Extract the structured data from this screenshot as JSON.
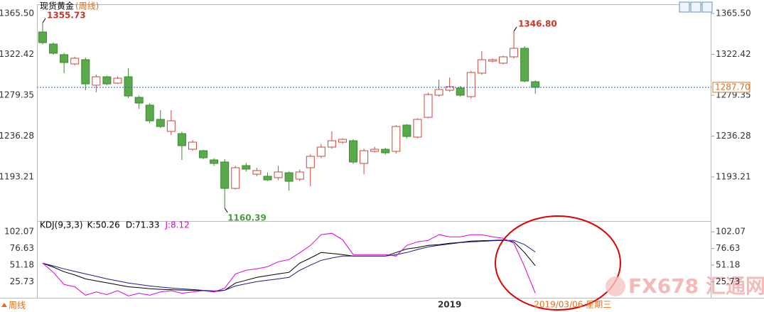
{
  "header": {
    "title": "现货黄金",
    "title_suffix": "(周线)",
    "period_button": "周线",
    "watermark": "FX678 汇通网"
  },
  "chart_data": [
    {
      "type": "candlestick",
      "categories": [
        null,
        null,
        null,
        null,
        null,
        null,
        null,
        null,
        null,
        null,
        null,
        null,
        null,
        null,
        null,
        null,
        null,
        null,
        null,
        null,
        null,
        null,
        null,
        null,
        null,
        null,
        null,
        null,
        null,
        null,
        null,
        null,
        null,
        null,
        null,
        null,
        null,
        null,
        "2019",
        null,
        null,
        null,
        null,
        null,
        null,
        null,
        null
      ],
      "open": [
        1346.0,
        1333.3,
        1322.1,
        1312.3,
        1316.8,
        1289.9,
        1298.8,
        1292.1,
        1298.8,
        1277.1,
        1268.9,
        1253.9,
        1241.2,
        1238.9,
        1222.4,
        1220.9,
        1211.2,
        1209.0,
        1181.2,
        1205.2,
        1196.2,
        1194.0,
        1192.5,
        1197.7,
        1191.0,
        1203.0,
        1215.0,
        1224.7,
        1229.9,
        1231.4,
        1207.5,
        1220.2,
        1222.4,
        1220.2,
        1247.9,
        1235.2,
        1256.1,
        1279.4,
        1284.6,
        1286.9,
        1277.9,
        1302.6,
        1315.3,
        1313.1,
        1319.8,
        1328.8,
        1293.6
      ],
      "high": [
        1355.73,
        1335,
        1324,
        1320,
        1319,
        1301,
        1300,
        1299,
        1307.8,
        1279,
        1271,
        1263.6,
        1263.6,
        1241,
        1232,
        1222,
        1213,
        1212,
        1205,
        1208,
        1203,
        1198,
        1205,
        1199,
        1201,
        1217,
        1228,
        1241.2,
        1234,
        1233,
        1223,
        1225,
        1224,
        1248,
        1249,
        1255,
        1282,
        1295.8,
        1298,
        1289,
        1305,
        1325.8,
        1318,
        1321,
        1346.8,
        1331,
        1295
      ],
      "low": [
        1333.0,
        1322,
        1302.6,
        1311,
        1284.6,
        1282.4,
        1290,
        1291,
        1276.4,
        1265,
        1250,
        1244.9,
        1237.4,
        1211.2,
        1221,
        1212,
        1205,
        1160.39,
        1180,
        1199,
        1194,
        1189,
        1190,
        1179.0,
        1189,
        1183.5,
        1213,
        1223,
        1228,
        1207,
        1196.2,
        1219,
        1217,
        1218,
        1234,
        1234,
        1255,
        1278,
        1283,
        1278,
        1276,
        1301,
        1314,
        1312,
        1318,
        1293,
        1281
      ],
      "close": [
        1334.8,
        1323.6,
        1313.8,
        1318.3,
        1291.3,
        1298.8,
        1291.3,
        1297.3,
        1278.6,
        1271.1,
        1252.4,
        1246.4,
        1252.4,
        1226.2,
        1229.9,
        1213.5,
        1207.5,
        1181.2,
        1203.0,
        1201.5,
        1200.0,
        1190.2,
        1198.5,
        1188.7,
        1198.5,
        1215.0,
        1224.7,
        1231.4,
        1232.9,
        1209.0,
        1220.9,
        1222.4,
        1218.7,
        1246.4,
        1235.9,
        1253.9,
        1280.1,
        1285.4,
        1288.4,
        1279.4,
        1303.3,
        1316.8,
        1316.8,
        1319.8,
        1328.8,
        1294.3,
        1287.7
      ],
      "up_color": "#d0463a",
      "down_color": "#5aaa4c",
      "ylim": [
        1151.3,
        1372.2
      ],
      "yticks": [
        {
          "value": 1365.5,
          "label": "1365.50"
        },
        1322.42,
        1279.35,
        1236.28,
        1193.21
      ],
      "last_price_label": "1287.70",
      "cursor_label": "2019/03/06 星期三",
      "annotations": [
        {
          "label": "1355.73",
          "value": 1355.73,
          "color": "#c0392b"
        },
        {
          "label": "1346.80",
          "value": 1346.8,
          "color": "#c0392b"
        },
        {
          "label": "1160.39",
          "value": 1160.39,
          "color": "#4a9a3c"
        }
      ]
    },
    {
      "type": "line",
      "title": "KDJ(9,3,3)",
      "ylim": [
        0,
        111
      ],
      "yticks": [
        102.07,
        76.63,
        51.18,
        25.73
      ],
      "series": [
        {
          "name": "K",
          "legend_text": "K:50.26",
          "color": "#000000",
          "values": [
            54,
            48,
            41,
            36,
            30,
            27,
            24,
            21,
            18,
            16.5,
            15,
            14,
            13.5,
            13,
            12.5,
            12,
            10.5,
            12.6,
            23.6,
            28,
            32.3,
            35,
            37.7,
            40,
            54.1,
            62,
            70.4,
            69,
            67.2,
            65,
            65,
            65,
            65,
            70.4,
            75.9,
            78,
            81.3,
            82.5,
            84.6,
            86,
            87.9,
            88.5,
            89,
            89.5,
            86.8,
            70.4,
            50.26
          ]
        },
        {
          "name": "D",
          "legend_text": "D:71.33",
          "color": "#1a1a8c",
          "values": [
            54,
            50,
            45.4,
            41.5,
            37.7,
            34,
            30,
            27,
            23.6,
            21.5,
            19.2,
            17.5,
            16,
            14.8,
            13.7,
            12.5,
            11.5,
            12.6,
            19.2,
            22.5,
            25.8,
            28,
            30,
            32.3,
            43.2,
            51,
            58.4,
            62,
            65,
            65,
            65,
            65,
            65,
            67,
            70.4,
            75,
            79,
            81.5,
            83.5,
            85.5,
            86.8,
            87.5,
            88.5,
            89,
            89,
            82.5,
            71.33
          ]
        },
        {
          "name": "J",
          "legend_text": "J:8.12",
          "color": "#e000e0",
          "values": [
            54.1,
            40,
            21.4,
            18,
            5,
            10,
            6,
            12,
            4,
            8,
            5,
            10,
            12,
            8,
            10,
            12,
            10,
            15.9,
            37.7,
            43.2,
            45.4,
            48.6,
            56.3,
            59.5,
            70,
            81.3,
            97.7,
            99.9,
            90,
            67.2,
            67.2,
            67.2,
            67.2,
            65,
            81.3,
            86.8,
            89.0,
            97.7,
            94.4,
            94.4,
            97.7,
            97.7,
            94.4,
            92.3,
            84.6,
            48.6,
            8.12
          ]
        }
      ]
    }
  ]
}
